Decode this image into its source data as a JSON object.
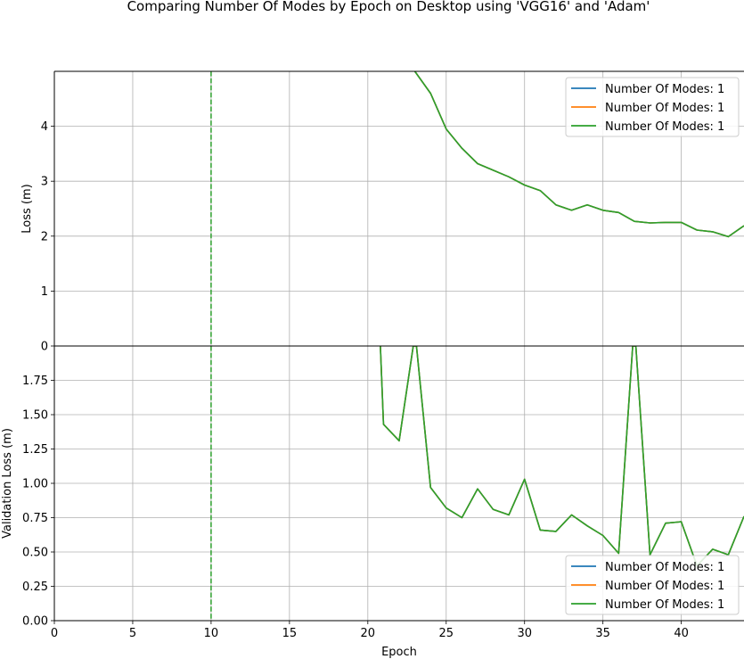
{
  "title": "Comparing Number Of Modes by Epoch on Desktop using 'VGG16' and 'Adam'",
  "chart_data": [
    {
      "type": "line",
      "panel": "top",
      "xlabel": "",
      "ylabel": "Loss (m)",
      "xlim": [
        0,
        44
      ],
      "ylim": [
        0,
        5
      ],
      "yticks": [
        0,
        1,
        2,
        3,
        4
      ],
      "ytick_labels": [
        "0",
        "1",
        "2",
        "3",
        "4"
      ],
      "grid": true,
      "legend_position": "top-right",
      "vline": {
        "x": 10,
        "color": "#2ca02c",
        "style": "dashed"
      },
      "series": [
        {
          "name": "Number Of Modes: 1",
          "color": "#1f77b4",
          "x": [
            23,
            24,
            25,
            26,
            27,
            28,
            29,
            30,
            31,
            32,
            33,
            34,
            35,
            36,
            37,
            38,
            39,
            40,
            41,
            42,
            43,
            44
          ],
          "y": [
            5.0,
            4.6,
            3.95,
            3.6,
            3.32,
            3.2,
            3.08,
            2.93,
            2.83,
            2.57,
            2.47,
            2.57,
            2.47,
            2.43,
            2.27,
            2.24,
            2.25,
            2.25,
            2.11,
            2.08,
            1.99,
            2.19
          ]
        },
        {
          "name": "Number Of Modes: 1",
          "color": "#ff7f0e",
          "x": [
            23,
            24,
            25,
            26,
            27,
            28,
            29,
            30,
            31,
            32,
            33,
            34,
            35,
            36,
            37,
            38,
            39,
            40,
            41,
            42,
            43,
            44
          ],
          "y": [
            5.0,
            4.6,
            3.95,
            3.6,
            3.32,
            3.2,
            3.08,
            2.93,
            2.83,
            2.57,
            2.47,
            2.57,
            2.47,
            2.43,
            2.27,
            2.24,
            2.25,
            2.25,
            2.11,
            2.08,
            1.99,
            2.19
          ]
        },
        {
          "name": "Number Of Modes: 1",
          "color": "#2ca02c",
          "x": [
            23,
            24,
            25,
            26,
            27,
            28,
            29,
            30,
            31,
            32,
            33,
            34,
            35,
            36,
            37,
            38,
            39,
            40,
            41,
            42,
            43,
            44
          ],
          "y": [
            5.0,
            4.6,
            3.95,
            3.6,
            3.32,
            3.2,
            3.08,
            2.93,
            2.83,
            2.57,
            2.47,
            2.57,
            2.47,
            2.43,
            2.27,
            2.24,
            2.25,
            2.25,
            2.11,
            2.08,
            1.99,
            2.19
          ]
        }
      ]
    },
    {
      "type": "line",
      "panel": "bottom",
      "xlabel": "Epoch",
      "ylabel": "Validation Loss (m)",
      "xlim": [
        0,
        44
      ],
      "ylim": [
        0,
        2
      ],
      "xticks": [
        0,
        5,
        10,
        15,
        20,
        25,
        30,
        35,
        40
      ],
      "xtick_labels": [
        "0",
        "5",
        "10",
        "15",
        "20",
        "25",
        "30",
        "35",
        "40"
      ],
      "yticks": [
        0,
        0.25,
        0.5,
        0.75,
        1.0,
        1.25,
        1.5,
        1.75
      ],
      "ytick_labels": [
        "0.00",
        "0.25",
        "0.50",
        "0.75",
        "1.00",
        "1.25",
        "1.50",
        "1.75"
      ],
      "grid": true,
      "legend_position": "bottom-right",
      "vline": {
        "x": 10,
        "color": "#2ca02c",
        "style": "dashed"
      },
      "series": [
        {
          "name": "Number Of Modes: 1",
          "color": "#1f77b4",
          "x": [
            20.8,
            21,
            22,
            22.9,
            23.1,
            24,
            25,
            26,
            27,
            28,
            29,
            30,
            31,
            32,
            33,
            34,
            35,
            36,
            36.9,
            37.1,
            38,
            39,
            40,
            41,
            42,
            43,
            44
          ],
          "y": [
            2.0,
            1.43,
            1.31,
            2.0,
            2.0,
            0.97,
            0.82,
            0.75,
            0.96,
            0.81,
            0.77,
            1.03,
            0.66,
            0.65,
            0.77,
            0.69,
            0.62,
            0.49,
            2.0,
            2.0,
            0.48,
            0.71,
            0.72,
            0.4,
            0.52,
            0.48,
            0.76
          ]
        },
        {
          "name": "Number Of Modes: 1",
          "color": "#ff7f0e",
          "x": [
            20.8,
            21,
            22,
            22.9,
            23.1,
            24,
            25,
            26,
            27,
            28,
            29,
            30,
            31,
            32,
            33,
            34,
            35,
            36,
            36.9,
            37.1,
            38,
            39,
            40,
            41,
            42,
            43,
            44
          ],
          "y": [
            2.0,
            1.43,
            1.31,
            2.0,
            2.0,
            0.97,
            0.82,
            0.75,
            0.96,
            0.81,
            0.77,
            1.03,
            0.66,
            0.65,
            0.77,
            0.69,
            0.62,
            0.49,
            2.0,
            2.0,
            0.48,
            0.71,
            0.72,
            0.4,
            0.52,
            0.48,
            0.76
          ]
        },
        {
          "name": "Number Of Modes: 1",
          "color": "#2ca02c",
          "x": [
            20.8,
            21,
            22,
            22.9,
            23.1,
            24,
            25,
            26,
            27,
            28,
            29,
            30,
            31,
            32,
            33,
            34,
            35,
            36,
            36.9,
            37.1,
            38,
            39,
            40,
            41,
            42,
            43,
            44
          ],
          "y": [
            2.0,
            1.43,
            1.31,
            2.0,
            2.0,
            0.97,
            0.82,
            0.75,
            0.96,
            0.81,
            0.77,
            1.03,
            0.66,
            0.65,
            0.77,
            0.69,
            0.62,
            0.49,
            2.0,
            2.0,
            0.48,
            0.71,
            0.72,
            0.4,
            0.52,
            0.48,
            0.76
          ]
        }
      ]
    }
  ]
}
